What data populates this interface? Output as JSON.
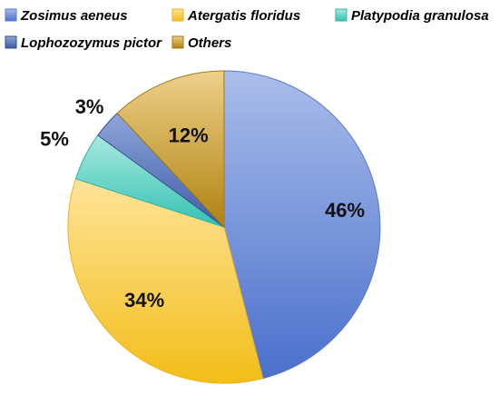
{
  "chart_data": {
    "type": "pie",
    "legend_position": "top",
    "start_angle_deg": 0,
    "direction": "clockwise",
    "slices": [
      {
        "name": "Zosimus aeneus",
        "value": 46,
        "label": "46%",
        "color_light": "#AABDEA",
        "color_dark": "#4A70CC",
        "border": "#5A7ACB"
      },
      {
        "name": "Atergatis floridus",
        "value": 34,
        "label": "34%",
        "color_light": "#FFE39A",
        "color_dark": "#F2BE18",
        "border": "#E6B422"
      },
      {
        "name": "Platypodia granulosa",
        "value": 5,
        "label": "5%",
        "color_light": "#A8E8DF",
        "color_dark": "#33C2B2",
        "border": "#36B5A8"
      },
      {
        "name": "Lophozozymus pictor",
        "value": 3,
        "label": "3%",
        "color_light": "#8EA6DA",
        "color_dark": "#3F5CA6",
        "border": "#34508F"
      },
      {
        "name": "Others",
        "value": 12,
        "label": "12%",
        "color_light": "#EDD08A",
        "color_dark": "#B0820F",
        "border": "#A07A16"
      }
    ]
  }
}
